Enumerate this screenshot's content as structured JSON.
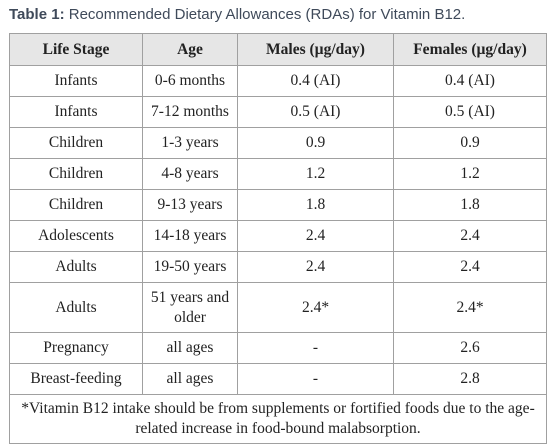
{
  "caption": {
    "label": "Table 1:",
    "text": "Recommended Dietary Allowances (RDAs) for Vitamin B12."
  },
  "table": {
    "headers": [
      "Life Stage",
      "Age",
      "Males (µg/day)",
      "Females (µg/day)"
    ],
    "rows": [
      [
        "Infants",
        "0-6 months",
        "0.4 (AI)",
        "0.4 (AI)"
      ],
      [
        "Infants",
        "7-12 months",
        "0.5 (AI)",
        "0.5 (AI)"
      ],
      [
        "Children",
        "1-3 years",
        "0.9",
        "0.9"
      ],
      [
        "Children",
        "4-8 years",
        "1.2",
        "1.2"
      ],
      [
        "Children",
        "9-13 years",
        "1.8",
        "1.8"
      ],
      [
        "Adolescents",
        "14-18 years",
        "2.4",
        "2.4"
      ],
      [
        "Adults",
        "19-50 years",
        "2.4",
        "2.4"
      ],
      [
        "Adults",
        "51 years and older",
        "2.4*",
        "2.4*"
      ],
      [
        "Pregnancy",
        "all ages",
        "-",
        "2.6"
      ],
      [
        "Breast-feeding",
        "all ages",
        "-",
        "2.8"
      ]
    ],
    "footnote": "*Vitamin B12 intake should be from supplements or fortified foods due to the age-related increase in food-bound malabsorption."
  }
}
